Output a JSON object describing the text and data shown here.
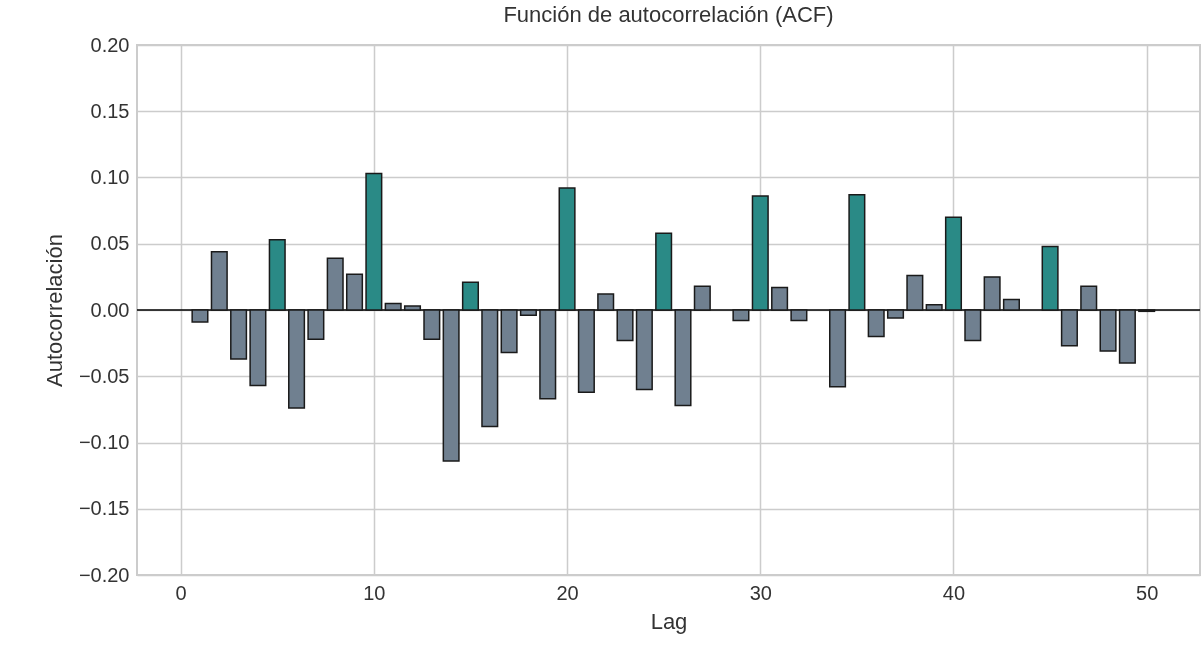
{
  "chart_data": {
    "type": "bar",
    "title": "Función de autocorrelación (ACF)",
    "xlabel": "Lag",
    "ylabel": "Autocorrelación",
    "x": [
      1,
      2,
      3,
      4,
      5,
      6,
      7,
      8,
      9,
      10,
      11,
      12,
      13,
      14,
      15,
      16,
      17,
      18,
      19,
      20,
      21,
      22,
      23,
      24,
      25,
      26,
      27,
      28,
      29,
      30,
      31,
      32,
      33,
      34,
      35,
      36,
      37,
      38,
      39,
      40,
      41,
      42,
      43,
      44,
      45,
      46,
      47,
      48,
      49,
      50
    ],
    "values": [
      -0.009,
      0.044,
      -0.037,
      -0.057,
      0.053,
      -0.074,
      -0.022,
      0.039,
      0.027,
      0.103,
      0.005,
      0.003,
      -0.022,
      -0.114,
      0.021,
      -0.088,
      -0.032,
      -0.004,
      -0.067,
      0.092,
      -0.062,
      0.012,
      -0.023,
      -0.06,
      0.058,
      -0.072,
      0.018,
      null,
      -0.008,
      0.086,
      0.017,
      -0.008,
      null,
      -0.058,
      0.087,
      -0.02,
      -0.006,
      0.026,
      0.004,
      0.07,
      -0.023,
      0.025,
      0.008,
      null,
      0.048,
      -0.027,
      0.018,
      -0.031,
      -0.04,
      -0.001
    ],
    "colors": [
      "#708090",
      "#708090",
      "#708090",
      "#708090",
      "#2a8a86",
      "#708090",
      "#708090",
      "#708090",
      "#708090",
      "#2a8a86",
      "#708090",
      "#708090",
      "#708090",
      "#708090",
      "#2a8a86",
      "#708090",
      "#708090",
      "#708090",
      "#708090",
      "#2a8a86",
      "#708090",
      "#708090",
      "#708090",
      "#708090",
      "#2a8a86",
      "#708090",
      "#708090",
      "#708090",
      "#708090",
      "#2a8a86",
      "#708090",
      "#708090",
      "#708090",
      "#708090",
      "#2a8a86",
      "#708090",
      "#708090",
      "#708090",
      "#708090",
      "#2a8a86",
      "#708090",
      "#708090",
      "#708090",
      "#708090",
      "#2a8a86",
      "#708090",
      "#708090",
      "#708090",
      "#708090",
      "#2a8a86"
    ],
    "xlim": [
      -2,
      52.5
    ],
    "xticks": [
      0,
      10,
      20,
      30,
      40,
      50
    ],
    "ylim": [
      -0.2,
      0.2
    ],
    "yticks": [
      {
        "value": -0.2,
        "label": "−0.20"
      },
      {
        "value": -0.15,
        "label": "−0.15"
      },
      {
        "value": -0.1,
        "label": "−0.10"
      },
      {
        "value": -0.05,
        "label": "−0.05"
      },
      {
        "value": 0,
        "label": "0.00"
      },
      {
        "value": 0.05,
        "label": "0.05"
      },
      {
        "value": 0.1,
        "label": "0.10"
      },
      {
        "value": 0.15,
        "label": "0.15"
      },
      {
        "value": 0.2,
        "label": "0.20"
      }
    ],
    "grid": true,
    "ref_lines": [
      {
        "axis": "y",
        "value": 0,
        "color": "#000000"
      }
    ]
  }
}
